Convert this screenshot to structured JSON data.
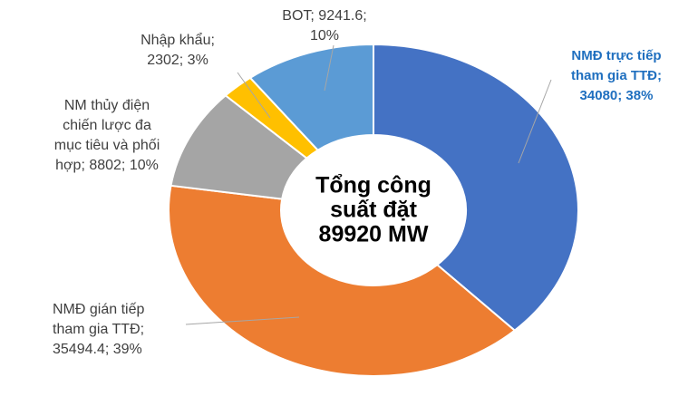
{
  "chart_data": {
    "type": "donut",
    "values": [
      34080,
      35494.4,
      8802,
      2302,
      9241.6
    ],
    "value_labels": [
      [
        "NMĐ trực tiếp",
        "tham gia TTĐ;",
        "34080; 38%"
      ],
      [
        "NMĐ gián tiếp",
        "tham gia TTĐ;",
        "35494.4; 39%"
      ],
      [
        "NM thủy điện",
        "chiến lược đa",
        "mục tiêu và phối",
        "hợp; 8802; 10%"
      ],
      [
        "Nhập khẩu;",
        "2302; 3%"
      ],
      [
        "BOT; 9241.6;",
        "10%"
      ]
    ],
    "colors": [
      "#4472c4",
      "#ed7d31",
      "#a5a5a5",
      "#ffc000",
      "#5b9bd5"
    ],
    "center_label": [
      "Tổng công",
      "suất đặt",
      "89920 MW"
    ]
  }
}
